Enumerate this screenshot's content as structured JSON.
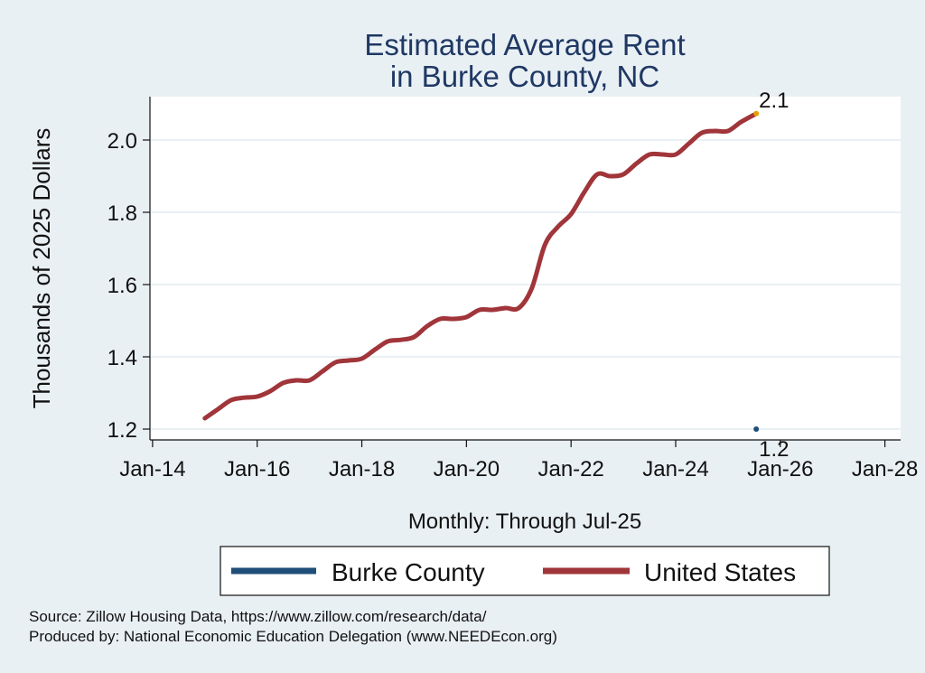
{
  "chart_data": {
    "type": "line",
    "title": [
      "Estimated Average Rent",
      "in Burke County, NC"
    ],
    "xlabel": "Monthly: Through Jul-25",
    "ylabel": "Thousands of 2025 Dollars",
    "x_tick_labels": [
      "Jan-14",
      "Jan-16",
      "Jan-18",
      "Jan-20",
      "Jan-22",
      "Jan-24",
      "Jan-26",
      "Jan-28"
    ],
    "x_ticks": [
      2014,
      2016,
      2018,
      2020,
      2022,
      2024,
      2026,
      2028
    ],
    "xlim": [
      2013.95,
      2028.3
    ],
    "y_ticks": [
      1.2,
      1.4,
      1.6,
      1.8,
      2.0
    ],
    "y_tick_labels": [
      "1.2",
      "1.4",
      "1.6",
      "1.8",
      "2.0"
    ],
    "ylim": [
      1.17,
      2.12
    ],
    "grid": true,
    "legend_position": "bottom",
    "series": [
      {
        "name": "Burke County",
        "color": "#1f4e79",
        "x": [
          2025.54
        ],
        "y": [
          1.2
        ],
        "end_label": "1.2"
      },
      {
        "name": "United States",
        "color": "#a0353a",
        "end_marker_color": "#e69f00",
        "end_label": "2.1",
        "x": [
          2015.0,
          2015.25,
          2015.5,
          2015.75,
          2016.0,
          2016.25,
          2016.5,
          2016.75,
          2017.0,
          2017.25,
          2017.5,
          2017.75,
          2018.0,
          2018.25,
          2018.5,
          2018.75,
          2019.0,
          2019.25,
          2019.5,
          2019.75,
          2020.0,
          2020.25,
          2020.5,
          2020.75,
          2021.0,
          2021.25,
          2021.5,
          2021.75,
          2022.0,
          2022.25,
          2022.5,
          2022.75,
          2023.0,
          2023.25,
          2023.5,
          2023.75,
          2024.0,
          2024.25,
          2024.5,
          2024.75,
          2025.0,
          2025.25,
          2025.54
        ],
        "y": [
          1.23,
          1.255,
          1.28,
          1.287,
          1.29,
          1.305,
          1.328,
          1.335,
          1.335,
          1.36,
          1.385,
          1.39,
          1.395,
          1.42,
          1.443,
          1.447,
          1.455,
          1.485,
          1.505,
          1.505,
          1.51,
          1.53,
          1.53,
          1.535,
          1.535,
          1.59,
          1.71,
          1.76,
          1.795,
          1.855,
          1.905,
          1.9,
          1.905,
          1.935,
          1.96,
          1.96,
          1.96,
          1.99,
          2.02,
          2.025,
          2.025,
          2.05,
          2.073
        ]
      }
    ]
  },
  "source_lines": [
    "Source: Zillow Housing Data, https://www.zillow.com/research/data/",
    "Produced by: National Economic Education Delegation (www.NEEDEcon.org)"
  ]
}
